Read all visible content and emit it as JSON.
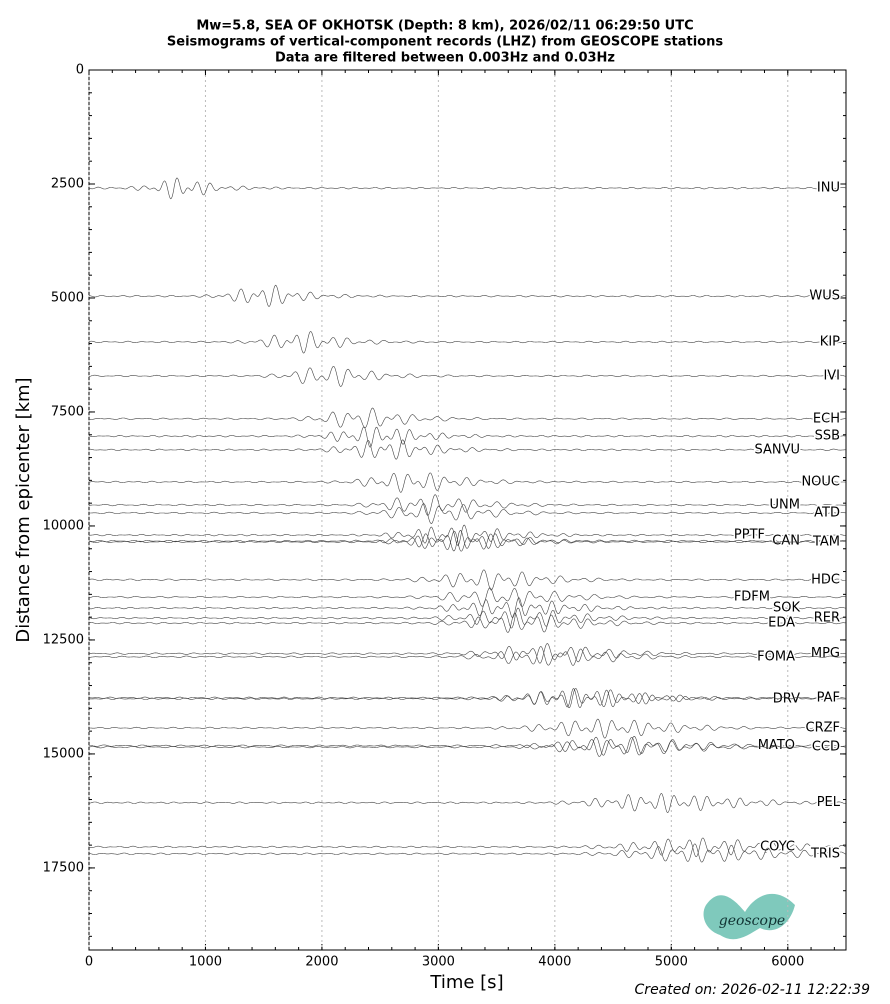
{
  "chart_data": {
    "type": "seismogram",
    "title": "Mw=5.8, SEA OF OKHOTSK (Depth: 8 km), 2026/02/11 06:29:50 UTC",
    "subtitle": "Seismograms of vertical-component records (LHZ) from GEOSCOPE stations",
    "subtitle2": "Data are filtered between 0.003Hz and 0.03Hz",
    "x_label": "Time [s]",
    "y_label": "Distance from epicenter [km]",
    "xlim": [
      0,
      6500
    ],
    "ylim": [
      0,
      19300
    ],
    "xticks": [
      0,
      1000,
      2000,
      3000,
      4000,
      5000,
      6000
    ],
    "yticks": [
      0,
      2500,
      5000,
      7500,
      10000,
      12500,
      15000,
      17500
    ],
    "grid": true,
    "color": "#444444",
    "stations": [
      "INU",
      "WUS",
      "KIP",
      "IVI",
      "ECH",
      "SSB",
      "SANVU",
      "NOUC",
      "UNM",
      "ATD",
      "PPTF",
      "CAN",
      "TAM",
      "HDC",
      "FDFM",
      "SOK",
      "RER",
      "EDA",
      "MPG",
      "FOMA",
      "DRV",
      "PAF",
      "CRZF",
      "MATO",
      "CCD",
      "PEL",
      "COYC",
      "TRIS"
    ],
    "distances": [
      2590,
      4960,
      5965,
      6710,
      7650,
      8030,
      8330,
      9035,
      9540,
      9715,
      10200,
      10330,
      10350,
      11180,
      11560,
      11800,
      12020,
      12130,
      12800,
      12870,
      13790,
      13770,
      14430,
      14820,
      14850,
      16070,
      17040,
      17190
    ],
    "footer": "Created on: 2026-02-11 12:22:39",
    "logo_text": "geoscope"
  }
}
